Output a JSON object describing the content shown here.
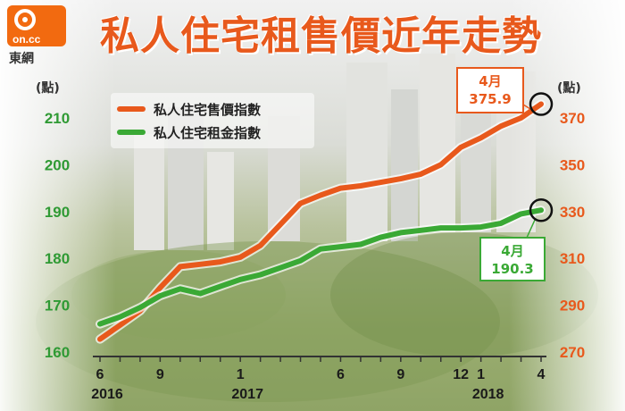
{
  "header": {
    "title": "私人住宅租售價近年走勢",
    "logo_brand": "on.cc",
    "logo_name": "東網"
  },
  "colors": {
    "sale": "#e8591c",
    "rent": "#3aa935",
    "left_axis": "#2f9a34",
    "right_axis": "#e8591c"
  },
  "chart_data": {
    "type": "line",
    "title": "私人住宅租售價近年走勢",
    "x": [
      "2016-06",
      "2016-07",
      "2016-08",
      "2016-09",
      "2016-10",
      "2016-11",
      "2016-12",
      "2017-01",
      "2017-02",
      "2017-03",
      "2017-04",
      "2017-05",
      "2017-06",
      "2017-07",
      "2017-08",
      "2017-09",
      "2017-10",
      "2017-11",
      "2017-12",
      "2018-01",
      "2018-02",
      "2018-03",
      "2018-04"
    ],
    "x_ticks": [
      {
        "x": "2016-06",
        "label": "6",
        "year": "2016"
      },
      {
        "x": "2016-09",
        "label": "9"
      },
      {
        "x": "2017-01",
        "label": "1",
        "year": "2017"
      },
      {
        "x": "2017-06",
        "label": "6"
      },
      {
        "x": "2017-09",
        "label": "9"
      },
      {
        "x": "2017-12",
        "label": "12"
      },
      {
        "x": "2018-01",
        "label": "1",
        "year": "2018"
      },
      {
        "x": "2018-04",
        "label": "4"
      }
    ],
    "y_left": {
      "label": "(點)",
      "range": [
        160,
        210
      ],
      "ticks": [
        160,
        170,
        180,
        190,
        200,
        210
      ]
    },
    "y_right": {
      "label": "(點)",
      "range": [
        270,
        370
      ],
      "ticks": [
        270,
        290,
        310,
        330,
        350,
        370
      ]
    },
    "series": [
      {
        "name": "私人住宅售價指數",
        "axis": "right",
        "color": "#e8591c",
        "values": [
          275.5,
          281.5,
          287.5,
          297.5,
          306.5,
          307.5,
          308.5,
          310.5,
          315.5,
          324.5,
          333.5,
          337,
          340,
          341,
          342.5,
          344,
          346,
          350,
          357.5,
          361.5,
          366.5,
          370,
          375.9
        ]
      },
      {
        "name": "私人住宅租金指數",
        "axis": "left",
        "color": "#3aa935",
        "values": [
          166,
          167.5,
          169.5,
          172,
          173.5,
          172.5,
          174,
          175.5,
          176.5,
          178,
          179.5,
          182,
          182.5,
          183,
          184.5,
          185.5,
          186,
          186.5,
          186.5,
          186.7,
          187.5,
          189.5,
          190.3
        ]
      }
    ],
    "annotations": [
      {
        "series": "私人住宅售價指數",
        "x": "2018-04",
        "month": "4月",
        "value": "375.9"
      },
      {
        "series": "私人住宅租金指數",
        "x": "2018-04",
        "month": "4月",
        "value": "190.3"
      }
    ],
    "legend": {
      "position": "top-left"
    },
    "grid": false
  }
}
